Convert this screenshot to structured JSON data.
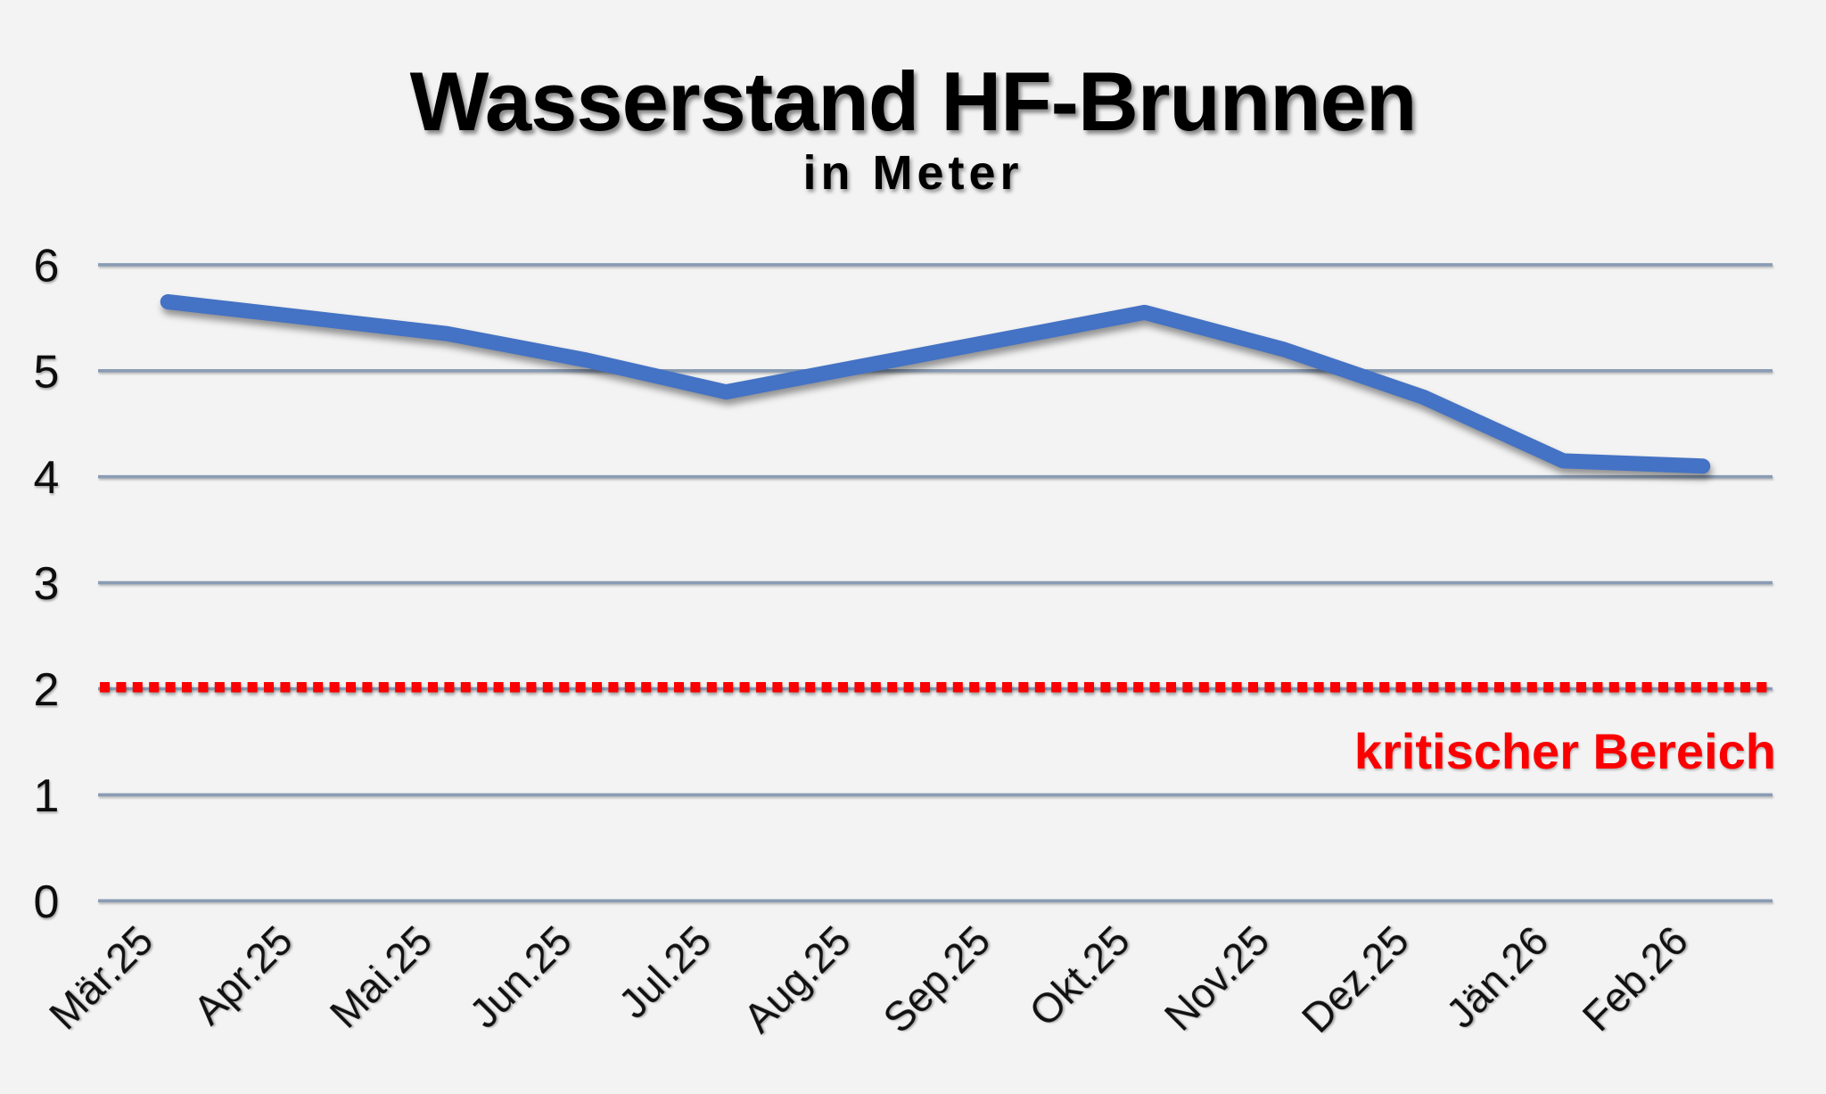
{
  "page": {
    "background_color": "#f3f3f3"
  },
  "header": {
    "title": "Wasserstand HF-Brunnen",
    "subtitle": "in Meter"
  },
  "annotation": {
    "critical_label": "kritischer Bereich",
    "color": "#fa0000"
  },
  "chart_data": {
    "type": "line",
    "title": "Wasserstand HF-Brunnen",
    "subtitle": "in Meter",
    "categories": [
      "Mär.25",
      "Apr.25",
      "Mai.25",
      "Jun.25",
      "Jul.25",
      "Aug.25",
      "Sep.25",
      "Okt.25",
      "Nov.25",
      "Dez.25",
      "Jän.26",
      "Feb.26"
    ],
    "series": [
      {
        "name": "Wasserstand HF-Brunnen",
        "color": "#4472c4",
        "values": [
          5.65,
          5.5,
          5.35,
          5.1,
          4.8,
          5.05,
          5.3,
          5.55,
          5.2,
          4.75,
          4.15,
          4.1
        ]
      }
    ],
    "reference_line": {
      "value": 2,
      "label": "kritischer Bereich",
      "color": "#fa0000",
      "style": "dotted"
    },
    "xlabel": "",
    "ylabel": "",
    "ylim": [
      0,
      6
    ],
    "yticks": [
      0,
      1,
      2,
      3,
      4,
      5,
      6
    ],
    "grid": true,
    "gridline_color": "#8a9cb4",
    "legend": "none"
  }
}
